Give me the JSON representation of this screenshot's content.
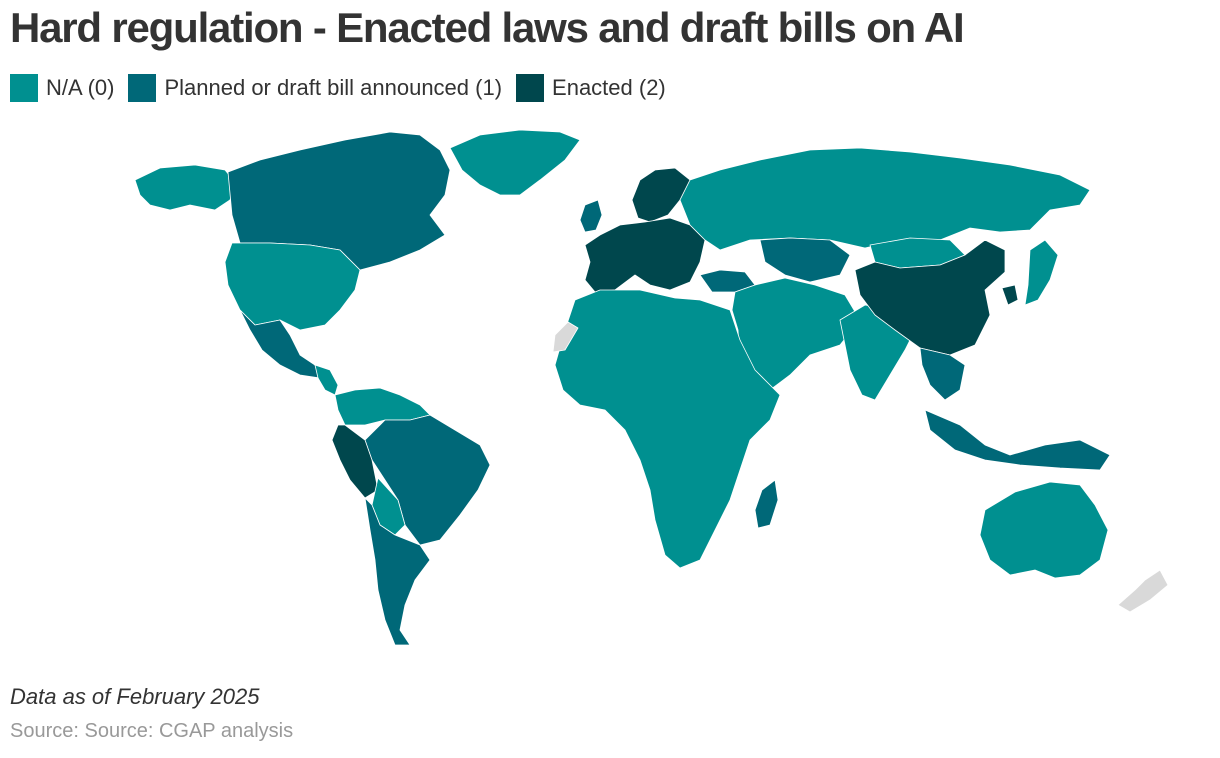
{
  "title": "Hard regulation - Enacted laws and draft bills on AI",
  "legend": [
    {
      "label": "N/A (0)",
      "color": "#009090"
    },
    {
      "label": "Planned or draft bill announced (1)",
      "color": "#006878"
    },
    {
      "label": "Enacted (2)",
      "color": "#00474d"
    }
  ],
  "colors": {
    "na": "#009090",
    "planned": "#006878",
    "enacted": "#00474d",
    "no_data": "#d9d9d9",
    "border": "#ffffff"
  },
  "map": {
    "type": "choropleth",
    "regions": [
      {
        "id": "alaska",
        "level": 0
      },
      {
        "id": "canada",
        "level": 1
      },
      {
        "id": "usa",
        "level": 0
      },
      {
        "id": "mexico",
        "level": 1
      },
      {
        "id": "central-america",
        "level": 0
      },
      {
        "id": "greenland",
        "level": 0
      },
      {
        "id": "colombia-venezuela",
        "level": 0
      },
      {
        "id": "brazil",
        "level": 1
      },
      {
        "id": "peru",
        "level": 2
      },
      {
        "id": "bolivia-paraguay",
        "level": 0
      },
      {
        "id": "argentina-chile",
        "level": 1
      },
      {
        "id": "western-europe",
        "level": 2
      },
      {
        "id": "scandinavia",
        "level": 2
      },
      {
        "id": "uk",
        "level": 1
      },
      {
        "id": "russia",
        "level": 0
      },
      {
        "id": "kazakhstan",
        "level": 1
      },
      {
        "id": "middle-east",
        "level": 0
      },
      {
        "id": "turkey",
        "level": 1
      },
      {
        "id": "africa",
        "level": 0
      },
      {
        "id": "western-sahara",
        "level": -1
      },
      {
        "id": "madagascar",
        "level": 1
      },
      {
        "id": "india",
        "level": 0
      },
      {
        "id": "china",
        "level": 2
      },
      {
        "id": "mongolia",
        "level": 0
      },
      {
        "id": "japan",
        "level": 0
      },
      {
        "id": "south-korea",
        "level": 2
      },
      {
        "id": "southeast-asia",
        "level": 1
      },
      {
        "id": "indonesia",
        "level": 1
      },
      {
        "id": "australia",
        "level": 0
      },
      {
        "id": "new-zealand",
        "level": -1
      }
    ]
  },
  "footnote": "Data as of February 2025",
  "source": "Source: Source: CGAP analysis"
}
